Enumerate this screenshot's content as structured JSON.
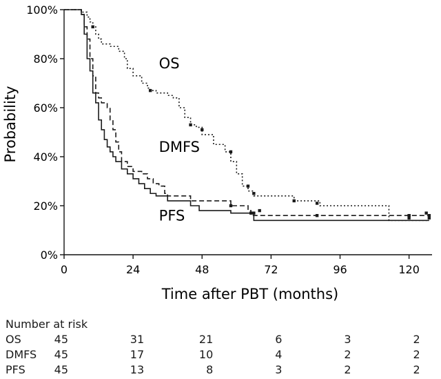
{
  "chart_data": {
    "type": "line",
    "title": "",
    "xlabel": "Time after PBT (months)",
    "ylabel": "Probability",
    "xlim": [
      0,
      128
    ],
    "ylim": [
      0,
      100
    ],
    "xticks": [
      0,
      24,
      48,
      72,
      96,
      120
    ],
    "yticks": [
      0,
      20,
      40,
      60,
      80,
      100
    ],
    "ytick_labels": [
      "0%",
      "20%",
      "40%",
      "60%",
      "80%",
      "100%"
    ],
    "series": [
      {
        "name": "OS",
        "style": "dotted",
        "steps": [
          [
            0,
            100
          ],
          [
            6,
            99
          ],
          [
            8,
            97
          ],
          [
            9,
            95
          ],
          [
            10,
            93
          ],
          [
            11,
            90
          ],
          [
            12,
            88
          ],
          [
            13,
            86
          ],
          [
            16,
            85
          ],
          [
            19,
            83
          ],
          [
            21,
            80
          ],
          [
            22,
            76
          ],
          [
            24,
            73
          ],
          [
            27,
            70
          ],
          [
            29,
            68
          ],
          [
            30,
            67
          ],
          [
            32,
            66
          ],
          [
            36,
            65
          ],
          [
            38,
            64
          ],
          [
            40,
            60
          ],
          [
            42,
            56
          ],
          [
            44,
            53
          ],
          [
            46,
            52
          ],
          [
            48,
            49
          ],
          [
            52,
            45
          ],
          [
            56,
            42
          ],
          [
            58,
            38
          ],
          [
            60,
            33
          ],
          [
            62,
            28
          ],
          [
            64,
            26
          ],
          [
            66,
            24
          ],
          [
            80,
            22
          ],
          [
            89,
            20
          ],
          [
            113,
            14
          ],
          [
            127,
            14
          ]
        ],
        "censored": [
          [
            10,
            93
          ],
          [
            30,
            67
          ],
          [
            44,
            53
          ],
          [
            48,
            51
          ],
          [
            58,
            42
          ],
          [
            64,
            28
          ],
          [
            66,
            25
          ],
          [
            80,
            22
          ],
          [
            88,
            21
          ],
          [
            120,
            16
          ],
          [
            126,
            17
          ]
        ]
      },
      {
        "name": "DMFS",
        "style": "dashed",
        "steps": [
          [
            0,
            100
          ],
          [
            6,
            98
          ],
          [
            7,
            93
          ],
          [
            8,
            88
          ],
          [
            9,
            80
          ],
          [
            10,
            73
          ],
          [
            11,
            66
          ],
          [
            12,
            64
          ],
          [
            13,
            62
          ],
          [
            15,
            60
          ],
          [
            16,
            55
          ],
          [
            17,
            51
          ],
          [
            18,
            46
          ],
          [
            19,
            42
          ],
          [
            20,
            38
          ],
          [
            22,
            36
          ],
          [
            24,
            34
          ],
          [
            27,
            33
          ],
          [
            29,
            31
          ],
          [
            31,
            29
          ],
          [
            33,
            28
          ],
          [
            35,
            25
          ],
          [
            36,
            24
          ],
          [
            44,
            22
          ],
          [
            58,
            20
          ],
          [
            64,
            18
          ],
          [
            65,
            16
          ],
          [
            127,
            16
          ]
        ],
        "censored": [
          [
            58,
            20
          ],
          [
            65,
            17
          ],
          [
            68,
            18
          ],
          [
            88,
            16
          ],
          [
            120,
            16
          ],
          [
            127,
            16
          ]
        ]
      },
      {
        "name": "PFS",
        "style": "solid",
        "steps": [
          [
            0,
            100
          ],
          [
            6,
            98
          ],
          [
            7,
            90
          ],
          [
            8,
            80
          ],
          [
            9,
            75
          ],
          [
            10,
            66
          ],
          [
            11,
            62
          ],
          [
            12,
            55
          ],
          [
            13,
            51
          ],
          [
            14,
            47
          ],
          [
            15,
            44
          ],
          [
            16,
            42
          ],
          [
            17,
            40
          ],
          [
            18,
            38
          ],
          [
            20,
            35
          ],
          [
            22,
            33
          ],
          [
            24,
            31
          ],
          [
            26,
            29
          ],
          [
            28,
            27
          ],
          [
            30,
            25
          ],
          [
            32,
            24
          ],
          [
            36,
            22
          ],
          [
            44,
            20
          ],
          [
            47,
            18
          ],
          [
            58,
            17
          ],
          [
            66,
            14
          ],
          [
            127,
            14
          ]
        ],
        "censored": [
          [
            66,
            17
          ],
          [
            120,
            15
          ],
          [
            127,
            15
          ]
        ]
      }
    ],
    "annotations": [
      {
        "text": "OS",
        "x": 33,
        "y": 76
      },
      {
        "text": "DMFS",
        "x": 33,
        "y": 42
      },
      {
        "text": "PFS",
        "x": 33,
        "y": 14
      }
    ]
  },
  "risk_table": {
    "header": "Number at risk",
    "timepoints": [
      0,
      24,
      48,
      72,
      96,
      120
    ],
    "rows": [
      {
        "name": "OS",
        "values": [
          "45",
          "31",
          "21",
          "6",
          "3",
          "2"
        ]
      },
      {
        "name": "DMFS",
        "values": [
          "45",
          "17",
          "10",
          "4",
          "2",
          "2"
        ]
      },
      {
        "name": "PFS",
        "values": [
          "45",
          "13",
          "8",
          "3",
          "2",
          "2"
        ]
      }
    ]
  }
}
